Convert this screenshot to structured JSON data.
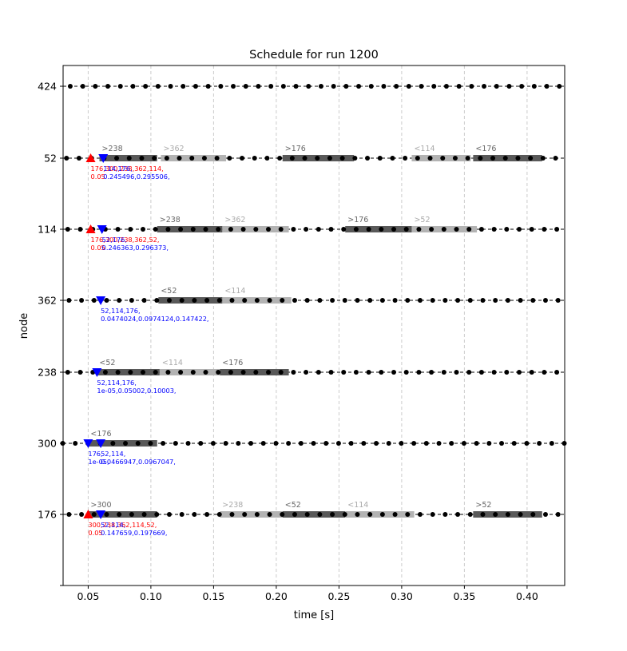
{
  "chart_data": {
    "type": "scatter",
    "title": "Schedule for run 1200",
    "xlabel": "time [s]",
    "ylabel": "node",
    "xlim": [
      0.03,
      0.43
    ],
    "xticks": [
      0.05,
      0.1,
      0.15,
      0.2,
      0.25,
      0.3,
      0.35,
      0.4
    ],
    "xtick_labels": [
      "0.05",
      "0.10",
      "0.15",
      "0.20",
      "0.25",
      "0.30",
      "0.35",
      "0.40"
    ],
    "rows": [
      "176",
      "300",
      "238",
      "362",
      "114",
      "52",
      "424"
    ],
    "grid": true,
    "dot_period": 0.01,
    "dot_offsets": {
      "424": 0.0357,
      "52": 0.0327,
      "114": 0.0337,
      "362": 0.0347,
      "238": 0.0337,
      "300": 0.0297,
      "176": 0.0347
    },
    "segments": [
      {
        "row": "52",
        "start": 0.059,
        "end": 0.105,
        "label": ">238",
        "shade": "dark"
      },
      {
        "row": "52",
        "start": 0.108,
        "end": 0.16,
        "label": ">362",
        "shade": "light"
      },
      {
        "row": "52",
        "start": 0.205,
        "end": 0.262,
        "label": ">176",
        "shade": "dark"
      },
      {
        "row": "52",
        "start": 0.308,
        "end": 0.355,
        "label": "<114",
        "shade": "light"
      },
      {
        "row": "52",
        "start": 0.357,
        "end": 0.412,
        "label": "<176",
        "shade": "dark"
      },
      {
        "row": "114",
        "start": 0.105,
        "end": 0.157,
        "label": ">238",
        "shade": "dark"
      },
      {
        "row": "114",
        "start": 0.157,
        "end": 0.21,
        "label": ">362",
        "shade": "light"
      },
      {
        "row": "114",
        "start": 0.255,
        "end": 0.308,
        "label": ">176",
        "shade": "dark"
      },
      {
        "row": "114",
        "start": 0.308,
        "end": 0.36,
        "label": ">52",
        "shade": "light"
      },
      {
        "row": "362",
        "start": 0.106,
        "end": 0.157,
        "label": "<52",
        "shade": "dark"
      },
      {
        "row": "362",
        "start": 0.157,
        "end": 0.212,
        "label": "<114",
        "shade": "light"
      },
      {
        "row": "238",
        "start": 0.057,
        "end": 0.107,
        "label": "<52",
        "shade": "dark"
      },
      {
        "row": "238",
        "start": 0.107,
        "end": 0.155,
        "label": "<114",
        "shade": "light"
      },
      {
        "row": "238",
        "start": 0.155,
        "end": 0.21,
        "label": "<176",
        "shade": "dark"
      },
      {
        "row": "300",
        "start": 0.05,
        "end": 0.105,
        "label": "<176",
        "shade": "dark"
      },
      {
        "row": "176",
        "start": 0.05,
        "end": 0.105,
        "label": ">300",
        "shade": "dark"
      },
      {
        "row": "176",
        "start": 0.155,
        "end": 0.205,
        "label": ">238",
        "shade": "light"
      },
      {
        "row": "176",
        "start": 0.205,
        "end": 0.255,
        "label": "<52",
        "shade": "dark"
      },
      {
        "row": "176",
        "start": 0.255,
        "end": 0.31,
        "label": "<114",
        "shade": "light"
      },
      {
        "row": "176",
        "start": 0.357,
        "end": 0.412,
        "label": ">52",
        "shade": "dark"
      }
    ],
    "markers": [
      {
        "row": "52",
        "t": 0.052,
        "kind": "up",
        "color": "#ff0000"
      },
      {
        "row": "52",
        "t": 0.062,
        "kind": "down",
        "color": "#0000ff"
      },
      {
        "row": "114",
        "t": 0.052,
        "kind": "up",
        "color": "#ff0000"
      },
      {
        "row": "114",
        "t": 0.061,
        "kind": "down",
        "color": "#0000ff"
      },
      {
        "row": "362",
        "t": 0.06,
        "kind": "down",
        "color": "#0000ff"
      },
      {
        "row": "238",
        "t": 0.057,
        "kind": "down",
        "color": "#0000ff"
      },
      {
        "row": "300",
        "t": 0.05,
        "kind": "down",
        "color": "#0000ff"
      },
      {
        "row": "300",
        "t": 0.06,
        "kind": "down",
        "color": "#0000ff"
      },
      {
        "row": "176",
        "t": 0.05,
        "kind": "up",
        "color": "#ff0000"
      },
      {
        "row": "176",
        "t": 0.06,
        "kind": "down",
        "color": "#0000ff"
      }
    ],
    "annotations": [
      {
        "row": "52",
        "t": 0.052,
        "color": "#ff0000",
        "lines": [
          "176,300,238,362,114,",
          "0.05"
        ]
      },
      {
        "row": "52",
        "t": 0.062,
        "color": "#0000ff",
        "lines": [
          "114,176,",
          "0.245496,0.295506,"
        ]
      },
      {
        "row": "114",
        "t": 0.052,
        "color": "#ff0000",
        "lines": [
          "176,300,238,362,52,",
          "0.05"
        ]
      },
      {
        "row": "114",
        "t": 0.061,
        "color": "#0000ff",
        "lines": [
          "52,176,",
          "0.246363,0.296373,"
        ]
      },
      {
        "row": "362",
        "t": 0.06,
        "color": "#0000ff",
        "lines": [
          "52,114,176,",
          "0.0474024,0.0974124,0.147422,"
        ]
      },
      {
        "row": "238",
        "t": 0.057,
        "color": "#0000ff",
        "lines": [
          "52,114,176,",
          "1e-05,0.05002,0.10003,"
        ]
      },
      {
        "row": "300",
        "t": 0.05,
        "color": "#0000ff",
        "lines": [
          "176,",
          "1e-05,"
        ]
      },
      {
        "row": "300",
        "t": 0.06,
        "color": "#0000ff",
        "lines": [
          "52,114,",
          "0.0466947,0.0967047,"
        ]
      },
      {
        "row": "176",
        "t": 0.05,
        "color": "#ff0000",
        "lines": [
          "300,238,362,114,52,",
          "0.05"
        ]
      },
      {
        "row": "176",
        "t": 0.06,
        "color": "#0000ff",
        "lines": [
          "52,114,",
          "0.147659,0.197669,"
        ]
      }
    ],
    "colors": {
      "dark_segment": "#595959",
      "light_segment": "#b3b3b3",
      "dark_label": "#666666",
      "light_label": "#aaaaaa",
      "dots": "#000000",
      "grid": "#cccccc"
    }
  }
}
